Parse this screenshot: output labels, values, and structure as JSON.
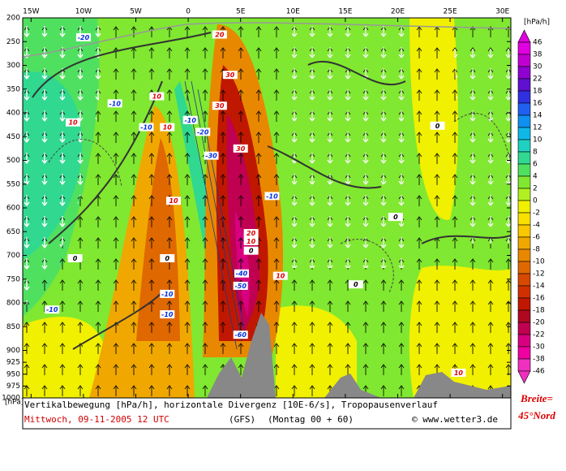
{
  "chart_data": {
    "type": "contour",
    "title": "Vertikalbewegung [hPa/h], horizontale Divergenz [10E-6/s], Tropopausenverlauf",
    "date": "Mittwoch, 09-11-2005  12 UTC",
    "model": "(GFS)",
    "run": "(Montag 00 + 60)",
    "credit": "© www.wetter3.de",
    "side_label": [
      "Breite=",
      "45°Nord"
    ],
    "ylabel": "[hPa]",
    "xlim": [
      -15.8,
      30.8
    ],
    "xticks": [
      {
        "value": -15,
        "label": "15W"
      },
      {
        "value": -10,
        "label": "10W"
      },
      {
        "value": -5,
        "label": "5W"
      },
      0,
      {
        "value": 5,
        "label": "5E"
      },
      {
        "value": 10,
        "label": "10E"
      },
      {
        "value": 15,
        "label": "15E"
      },
      {
        "value": 20,
        "label": "20E"
      },
      {
        "value": 25,
        "label": "25E"
      },
      {
        "value": 30,
        "label": "30E"
      }
    ],
    "ylim": [
      200,
      1000
    ],
    "yticks": [
      200,
      250,
      300,
      350,
      400,
      450,
      500,
      550,
      600,
      650,
      700,
      750,
      800,
      850,
      900,
      925,
      950,
      975,
      1000
    ],
    "colorbar": {
      "label": "[hPa/h]",
      "levels": [
        46,
        38,
        30,
        22,
        18,
        16,
        14,
        12,
        10,
        8,
        6,
        4,
        2,
        0,
        -2,
        -4,
        -6,
        -8,
        -10,
        -12,
        -14,
        -16,
        -18,
        -20,
        -22,
        -30,
        -38,
        -46
      ],
      "colors": [
        "#e000e0",
        "#c000d0",
        "#9000d0",
        "#6010d0",
        "#3030e0",
        "#2060f0",
        "#1090f0",
        "#10b8e8",
        "#20d0c0",
        "#30d890",
        "#50e060",
        "#80e830",
        "#b0f020",
        "#f0f000",
        "#f8e000",
        "#f8c800",
        "#f0a800",
        "#e88800",
        "#e06800",
        "#d84800",
        "#d03000",
        "#c01800",
        "#b00820",
        "#c00050",
        "#d80080",
        "#f000a0",
        "#f030c0"
      ]
    },
    "contour_labels": [
      {
        "value": -20,
        "x": -10,
        "y": 241
      },
      {
        "value": 20,
        "x": 3,
        "y": 235
      },
      {
        "value": -10,
        "x": -7,
        "y": 380
      },
      {
        "value": 10,
        "x": -11,
        "y": 420
      },
      {
        "value": 10,
        "x": -3,
        "y": 365
      },
      {
        "value": -10,
        "x": -4,
        "y": 430
      },
      {
        "value": 10,
        "x": -2,
        "y": 430
      },
      {
        "value": -10,
        "x": 0.2,
        "y": 415
      },
      {
        "value": -20,
        "x": 1.4,
        "y": 440
      },
      {
        "value": 30,
        "x": 4,
        "y": 320
      },
      {
        "value": 30,
        "x": 3,
        "y": 385
      },
      {
        "value": 30,
        "x": 5,
        "y": 475
      },
      {
        "value": -30,
        "x": 2.2,
        "y": 490
      },
      {
        "value": 0,
        "x": 23.8,
        "y": 427
      },
      {
        "value": -10,
        "x": 8,
        "y": 575
      },
      {
        "value": 10,
        "x": -1.4,
        "y": 585
      },
      {
        "value": 20,
        "x": 6,
        "y": 653
      },
      {
        "value": 10,
        "x": 6,
        "y": 670
      },
      {
        "value": 0,
        "x": 6,
        "y": 690
      },
      {
        "value": -40,
        "x": 5.1,
        "y": 738
      },
      {
        "value": -50,
        "x": 5,
        "y": 764
      },
      {
        "value": 10,
        "x": 8.8,
        "y": 743
      },
      {
        "value": -10,
        "x": -2,
        "y": 781
      },
      {
        "value": -10,
        "x": -2,
        "y": 824
      },
      {
        "value": -10,
        "x": -13,
        "y": 814
      },
      {
        "value": -60,
        "x": 5,
        "y": 867
      },
      {
        "value": 10,
        "x": 25.8,
        "y": 947
      },
      {
        "value": 0,
        "x": -2,
        "y": 706
      },
      {
        "value": 0,
        "x": -10.8,
        "y": 706
      },
      {
        "value": 0,
        "x": 19.8,
        "y": 619
      },
      {
        "value": 0,
        "x": 16,
        "y": 761
      }
    ]
  }
}
